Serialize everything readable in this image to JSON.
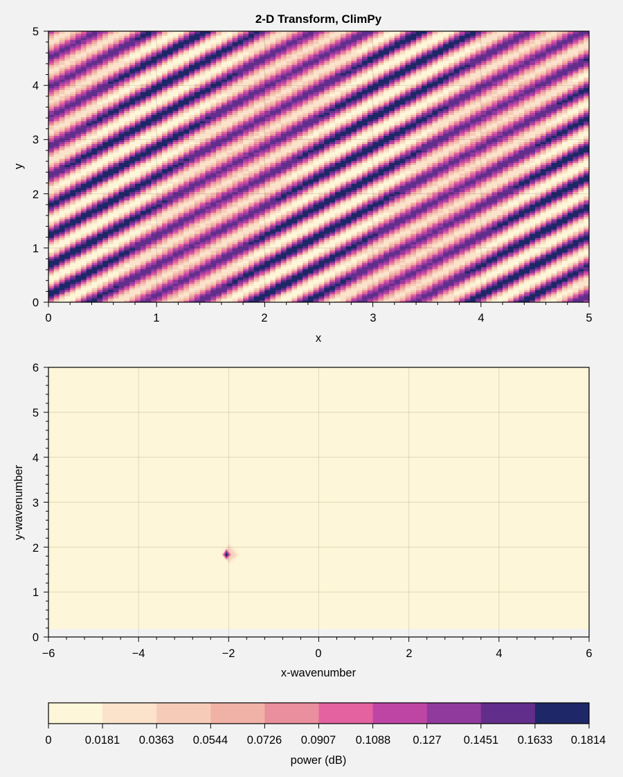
{
  "chart_data": [
    {
      "type": "heatmap",
      "title": "2-D Transform, ClimPy",
      "xlabel": "x",
      "ylabel": "y",
      "xlim": [
        0,
        5
      ],
      "ylim": [
        0,
        5
      ],
      "xticks": [
        "0",
        "1",
        "2",
        "3",
        "4",
        "5"
      ],
      "yticks": [
        "0",
        "1",
        "2",
        "3",
        "4",
        "5"
      ],
      "grid": true,
      "description_pattern": {
        "x_wavenumber": -2,
        "y_wavenumber": 1.83
      }
    },
    {
      "type": "heatmap",
      "title": "",
      "xlabel": "x-wavenumber",
      "ylabel": "y-wavenumber",
      "xlim": [
        -6,
        6
      ],
      "ylim": [
        0,
        6
      ],
      "xticks": [
        "−6",
        "−4",
        "−2",
        "0",
        "2",
        "4",
        "6"
      ],
      "yticks": [
        "0",
        "1",
        "2",
        "3",
        "4",
        "5",
        "6"
      ],
      "grid": true,
      "peak": {
        "x": -2.05,
        "y": 1.83,
        "value": 0.1814
      }
    }
  ],
  "colorbar": {
    "label": "power (dB)",
    "levels": [
      "0",
      "0.0181",
      "0.0363",
      "0.0544",
      "0.0726",
      "0.0907",
      "0.1088",
      "0.127",
      "0.1451",
      "0.1633",
      "0.1814"
    ],
    "colors": [
      "#fdf6d8",
      "#fbe3cb",
      "#f6ccb8",
      "#f0b2a7",
      "#ea8f9d",
      "#e3629f",
      "#bf45a5",
      "#913a9d",
      "#622e8c",
      "#1e2767"
    ],
    "location": "bottom"
  }
}
